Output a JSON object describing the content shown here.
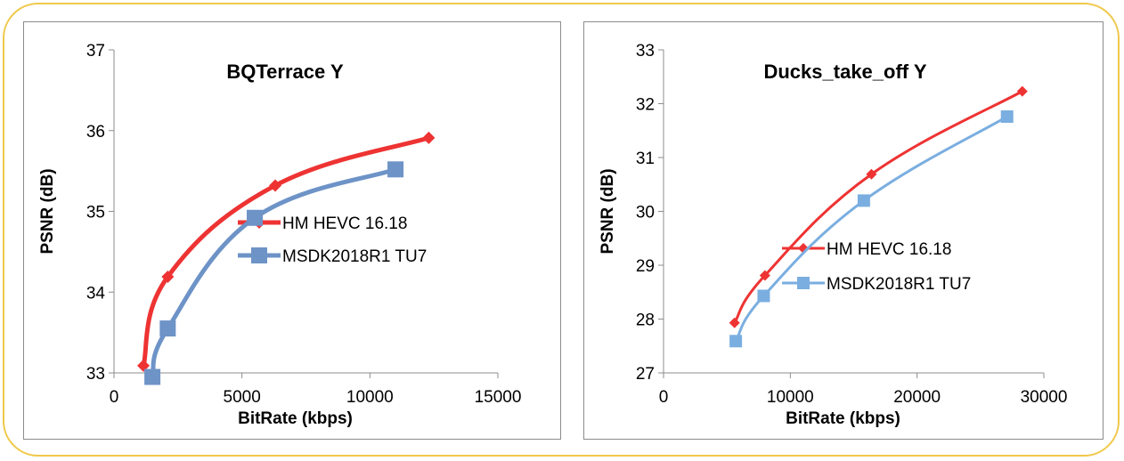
{
  "chart_data": [
    {
      "type": "line",
      "title": "BQTerrace Y",
      "xlabel": "BitRate (kbps)",
      "ylabel": "PSNR (dB)",
      "xlim": [
        0,
        15000
      ],
      "ylim": [
        33,
        37
      ],
      "xticks": [
        "0",
        "5000",
        "10000",
        "15000"
      ],
      "yticks": [
        "33",
        "34",
        "35",
        "36",
        "37"
      ],
      "grid": false,
      "legend": "center-right",
      "series": [
        {
          "name": "HM HEVC 16.18",
          "color": "#ee3333",
          "marker": "diamond",
          "x": [
            1150,
            2100,
            6300,
            12300
          ],
          "y": [
            33.09,
            34.19,
            35.32,
            35.91
          ]
        },
        {
          "name": "MSDK2018R1 TU7",
          "color": "#6d93c7",
          "marker": "square",
          "x": [
            1500,
            2100,
            5500,
            11000
          ],
          "y": [
            32.95,
            33.55,
            34.92,
            35.52
          ]
        }
      ]
    },
    {
      "type": "line",
      "title": "Ducks_take_off Y",
      "xlabel": "BitRate (kbps)",
      "ylabel": "PSNR (dB)",
      "xlim": [
        0,
        30000
      ],
      "ylim": [
        27,
        33
      ],
      "xticks": [
        "0",
        "10000",
        "20000",
        "30000"
      ],
      "yticks": [
        "27",
        "28",
        "29",
        "30",
        "31",
        "32",
        "33"
      ],
      "grid": false,
      "legend": "center-right",
      "series": [
        {
          "name": "HM HEVC 16.18",
          "color": "#ee3333",
          "marker": "diamond",
          "x": [
            5600,
            8000,
            16400,
            28300
          ],
          "y": [
            27.93,
            28.81,
            30.69,
            32.23
          ]
        },
        {
          "name": "MSDK2018R1 TU7",
          "color": "#7aaee0",
          "marker": "square",
          "x": [
            5700,
            7900,
            15800,
            27100
          ],
          "y": [
            27.59,
            28.43,
            30.2,
            31.76
          ]
        }
      ]
    }
  ]
}
